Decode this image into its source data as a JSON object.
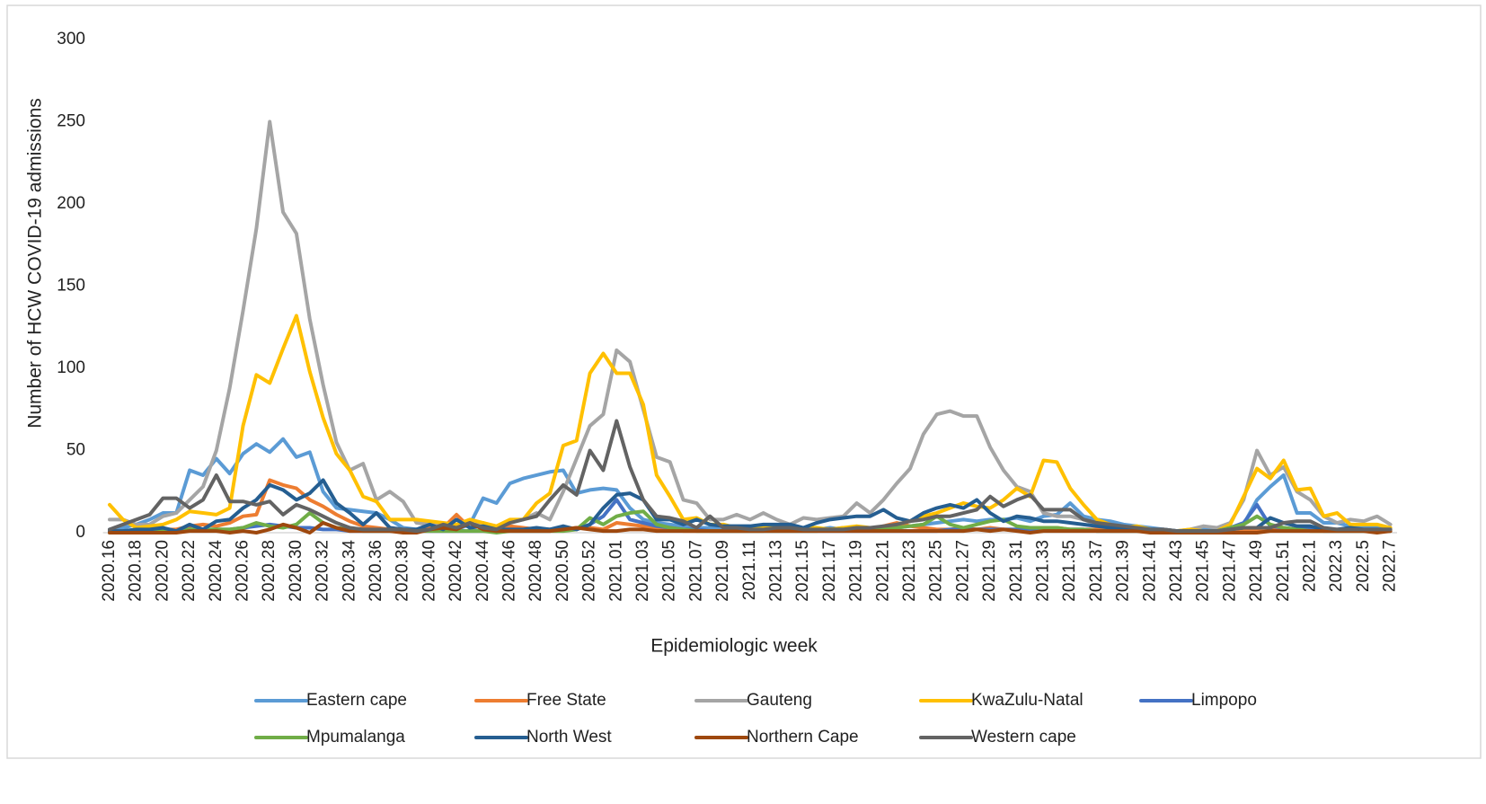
{
  "chart_data": {
    "type": "line",
    "y_label": "Number of HCW COVID-19 admissions",
    "x_label": "Epidemiologic week",
    "ylim": [
      0,
      300
    ],
    "yticks": [
      0,
      50,
      100,
      150,
      200,
      250,
      300
    ],
    "grid": false,
    "legend": "bottom",
    "categories": [
      "2020.16",
      null,
      "2020.18",
      null,
      "2020.20",
      null,
      "2020.22",
      null,
      "2020.24",
      null,
      "2020.26",
      null,
      "2020.28",
      null,
      "2020.30",
      null,
      "2020.32",
      null,
      "2020.34",
      null,
      "2020.36",
      null,
      "2020.38",
      null,
      "2020.40",
      null,
      "2020.42",
      null,
      "2020.44",
      null,
      "2020.46",
      null,
      "2020.48",
      null,
      "2020.50",
      null,
      "2020.52",
      null,
      "2021.01",
      null,
      "2021.03",
      null,
      "2021.05",
      null,
      "2021.07",
      null,
      "2021.09",
      null,
      "2021.11",
      null,
      "2021.13",
      null,
      "2021.15",
      null,
      "2021.17",
      null,
      "2021.19",
      null,
      "2021.21",
      null,
      "2021.23",
      null,
      "2021.25",
      null,
      "2021.27",
      null,
      "2021.29",
      null,
      "2021.31",
      null,
      "2021.33",
      null,
      "2021.35",
      null,
      "2021.37",
      null,
      "2021.39",
      null,
      "2021.41",
      null,
      "2021.43",
      null,
      "2021.45",
      null,
      "2021.47",
      null,
      "2021.49",
      null,
      "2021.51",
      null,
      "2022.1",
      null,
      "2022.3",
      null,
      "2022.5",
      null,
      "2022.7"
    ],
    "series": [
      {
        "name": "Eastern cape",
        "color": "#5b9bd5",
        "values": [
          2,
          3,
          5,
          8,
          12,
          12,
          38,
          35,
          45,
          36,
          48,
          54,
          49,
          57,
          46,
          49,
          25,
          15,
          14,
          13,
          12,
          8,
          3,
          2,
          2,
          3,
          2,
          5,
          21,
          18,
          30,
          33,
          35,
          37,
          38,
          24,
          26,
          27,
          26,
          15,
          8,
          6,
          5,
          4,
          3,
          3,
          2,
          3,
          2,
          2,
          3,
          3,
          2,
          2,
          3,
          2,
          2,
          2,
          3,
          3,
          4,
          5,
          6,
          7,
          8,
          7,
          8,
          8,
          9,
          7,
          10,
          11,
          18,
          10,
          8,
          7,
          5,
          4,
          3,
          2,
          1,
          1,
          2,
          2,
          3,
          5,
          20,
          28,
          35,
          12,
          12,
          6,
          6,
          4,
          4,
          3,
          2
        ]
      },
      {
        "name": "Free State",
        "color": "#ed7d31",
        "values": [
          1,
          1,
          1,
          1,
          2,
          2,
          4,
          5,
          4,
          6,
          10,
          11,
          32,
          29,
          27,
          20,
          16,
          11,
          7,
          4,
          3,
          2,
          1,
          2,
          3,
          3,
          11,
          3,
          6,
          3,
          4,
          3,
          2,
          2,
          2,
          3,
          3,
          2,
          6,
          5,
          4,
          2,
          2,
          1,
          1,
          1,
          1,
          1,
          1,
          1,
          2,
          2,
          2,
          2,
          2,
          3,
          3,
          2,
          4,
          6,
          4,
          3,
          2,
          2,
          3,
          2,
          3,
          2,
          2,
          2,
          3,
          3,
          2,
          2,
          2,
          1,
          1,
          1,
          1,
          1,
          1,
          1,
          1,
          1,
          1,
          1,
          2,
          2,
          2,
          2,
          1,
          1,
          1,
          1,
          1,
          1,
          1
        ]
      },
      {
        "name": "Gauteng",
        "color": "#a5a5a5",
        "values": [
          8,
          8,
          5,
          5,
          10,
          12,
          20,
          28,
          50,
          88,
          135,
          185,
          250,
          195,
          182,
          130,
          90,
          55,
          38,
          42,
          20,
          25,
          19,
          6,
          5,
          5,
          4,
          5,
          5,
          4,
          6,
          8,
          12,
          8,
          25,
          45,
          65,
          72,
          111,
          104,
          75,
          46,
          43,
          20,
          18,
          8,
          8,
          11,
          8,
          12,
          8,
          5,
          9,
          8,
          9,
          10,
          18,
          12,
          20,
          30,
          39,
          60,
          72,
          74,
          71,
          71,
          52,
          38,
          28,
          25,
          12,
          10,
          10,
          8,
          5,
          5,
          3,
          3,
          2,
          1,
          1,
          2,
          4,
          3,
          6,
          20,
          50,
          35,
          40,
          25,
          20,
          10,
          6,
          8,
          7,
          10,
          5
        ]
      },
      {
        "name": "KwaZulu-Natal",
        "color": "#ffc000",
        "values": [
          17,
          8,
          3,
          4,
          5,
          8,
          13,
          12,
          11,
          15,
          65,
          96,
          91,
          112,
          132,
          98,
          70,
          48,
          38,
          22,
          19,
          8,
          8,
          8,
          7,
          6,
          5,
          8,
          6,
          4,
          8,
          8,
          18,
          24,
          53,
          56,
          97,
          109,
          97,
          97,
          78,
          35,
          22,
          8,
          9,
          5,
          5,
          3,
          2,
          3,
          3,
          2,
          3,
          3,
          2,
          3,
          4,
          3,
          3,
          5,
          7,
          10,
          12,
          15,
          18,
          16,
          15,
          20,
          27,
          22,
          44,
          43,
          27,
          17,
          8,
          5,
          3,
          4,
          2,
          1,
          1,
          2,
          1,
          1,
          5,
          22,
          39,
          33,
          44,
          26,
          27,
          10,
          12,
          5,
          5,
          5,
          3
        ]
      },
      {
        "name": "Limpopo",
        "color": "#4472c4",
        "values": [
          0,
          0,
          1,
          1,
          1,
          1,
          2,
          2,
          2,
          2,
          3,
          4,
          5,
          4,
          3,
          3,
          2,
          2,
          1,
          1,
          1,
          1,
          1,
          1,
          1,
          1,
          1,
          1,
          1,
          1,
          1,
          1,
          1,
          1,
          2,
          2,
          5,
          10,
          20,
          8,
          6,
          4,
          3,
          2,
          2,
          1,
          1,
          1,
          1,
          1,
          1,
          1,
          1,
          1,
          1,
          1,
          1,
          1,
          1,
          1,
          1,
          1,
          1,
          2,
          2,
          2,
          2,
          2,
          2,
          2,
          2,
          2,
          2,
          2,
          1,
          1,
          1,
          1,
          1,
          1,
          1,
          1,
          1,
          1,
          3,
          6,
          17,
          4,
          3,
          2,
          2,
          1,
          1,
          1,
          1,
          1,
          1
        ]
      },
      {
        "name": "Mpumalanga",
        "color": "#70ad47",
        "values": [
          0,
          0,
          0,
          1,
          1,
          1,
          2,
          2,
          2,
          2,
          3,
          6,
          4,
          3,
          5,
          12,
          6,
          3,
          2,
          1,
          1,
          1,
          1,
          1,
          1,
          1,
          1,
          1,
          1,
          0,
          1,
          1,
          1,
          1,
          1,
          2,
          9,
          5,
          10,
          12,
          13,
          5,
          3,
          2,
          1,
          1,
          1,
          1,
          1,
          1,
          1,
          1,
          1,
          1,
          2,
          2,
          2,
          2,
          3,
          3,
          4,
          5,
          10,
          5,
          3,
          5,
          7,
          8,
          4,
          3,
          3,
          3,
          2,
          2,
          1,
          1,
          1,
          1,
          1,
          1,
          1,
          1,
          1,
          1,
          3,
          5,
          10,
          5,
          3,
          2,
          1,
          1,
          1,
          1,
          1,
          1,
          1
        ]
      },
      {
        "name": "North West",
        "color": "#255e91",
        "values": [
          1,
          1,
          2,
          2,
          3,
          1,
          5,
          2,
          7,
          8,
          15,
          20,
          29,
          26,
          20,
          24,
          32,
          18,
          12,
          5,
          12,
          3,
          2,
          2,
          5,
          2,
          8,
          3,
          4,
          2,
          2,
          2,
          3,
          2,
          4,
          2,
          5,
          15,
          23,
          24,
          20,
          8,
          8,
          5,
          8,
          5,
          4,
          4,
          4,
          5,
          5,
          5,
          3,
          6,
          8,
          9,
          10,
          10,
          14,
          9,
          7,
          12,
          15,
          17,
          15,
          20,
          12,
          7,
          10,
          9,
          7,
          7,
          6,
          5,
          4,
          3,
          3,
          2,
          2,
          2,
          1,
          1,
          1,
          1,
          2,
          3,
          3,
          9,
          6,
          4,
          4,
          2,
          2,
          3,
          2,
          2,
          2
        ]
      },
      {
        "name": "Northern Cape",
        "color": "#9e480e",
        "values": [
          0,
          0,
          0,
          0,
          0,
          0,
          1,
          1,
          1,
          0,
          1,
          0,
          2,
          5,
          3,
          0,
          6,
          3,
          1,
          1,
          1,
          1,
          0,
          0,
          2,
          3,
          2,
          6,
          2,
          1,
          1,
          1,
          1,
          1,
          2,
          3,
          2,
          1,
          1,
          2,
          2,
          1,
          1,
          1,
          1,
          1,
          1,
          1,
          1,
          1,
          1,
          1,
          1,
          1,
          1,
          1,
          1,
          1,
          1,
          1,
          1,
          1,
          1,
          1,
          1,
          2,
          1,
          2,
          1,
          0,
          1,
          1,
          1,
          1,
          1,
          1,
          1,
          1,
          0,
          0,
          0,
          0,
          0,
          0,
          0,
          0,
          0,
          1,
          1,
          1,
          1,
          1,
          1,
          1,
          1,
          0,
          1
        ]
      },
      {
        "name": "Western cape",
        "color": "#636363",
        "values": [
          2,
          5,
          8,
          11,
          21,
          21,
          15,
          20,
          35,
          19,
          19,
          17,
          19,
          11,
          17,
          14,
          10,
          6,
          3,
          2,
          2,
          2,
          2,
          1,
          2,
          5,
          3,
          6,
          3,
          2,
          6,
          8,
          10,
          20,
          29,
          23,
          50,
          38,
          68,
          40,
          20,
          10,
          9,
          7,
          3,
          10,
          3,
          3,
          2,
          2,
          3,
          3,
          2,
          2,
          2,
          2,
          3,
          3,
          4,
          5,
          7,
          8,
          10,
          10,
          12,
          14,
          22,
          16,
          20,
          23,
          14,
          14,
          14,
          8,
          6,
          5,
          4,
          3,
          2,
          2,
          1,
          1,
          1,
          1,
          2,
          3,
          3,
          3,
          6,
          7,
          7,
          3,
          2,
          2,
          2,
          2,
          2
        ]
      }
    ]
  }
}
